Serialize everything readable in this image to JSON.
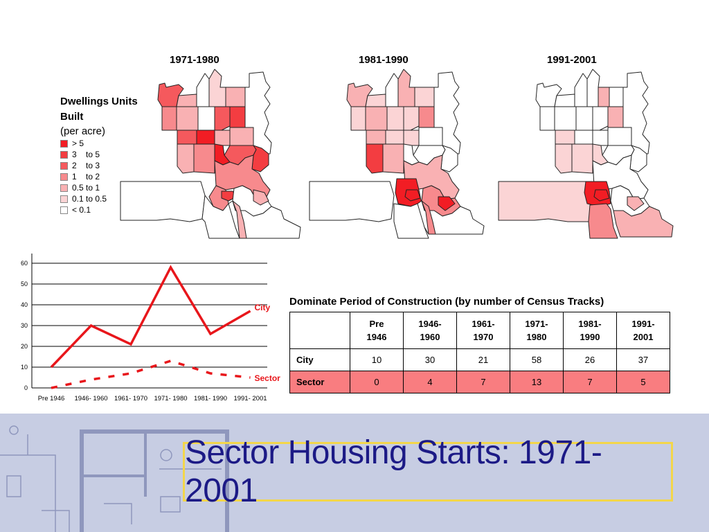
{
  "legend": {
    "title": "Dwellings Units Built",
    "subtitle": "(per acre)",
    "items": [
      {
        "label": "> 5",
        "color": "#f21d24"
      },
      {
        "label": "3    to 5",
        "color": "#f33d41"
      },
      {
        "label": "2    to 3",
        "color": "#f5595d"
      },
      {
        "label": "1    to 2",
        "color": "#f78a8d"
      },
      {
        "label": "0.5 to 1",
        "color": "#f9b1b3"
      },
      {
        "label": "0.1 to 0.5",
        "color": "#fbd4d5"
      },
      {
        "label": "< 0.1",
        "color": "#ffffff"
      }
    ]
  },
  "maps": [
    {
      "title": "1971-1980"
    },
    {
      "title": "1981-1990"
    },
    {
      "title": "1991-2001"
    }
  ],
  "chart_data": {
    "type": "line",
    "categories": [
      "Pre 1946",
      "1946- 1960",
      "1961- 1970",
      "1971- 1980",
      "1981- 1990",
      "1991- 2001"
    ],
    "series": [
      {
        "name": "City",
        "values": [
          10,
          30,
          21,
          58,
          26,
          37
        ],
        "color": "#e8161b",
        "dash": false
      },
      {
        "name": "Sector",
        "values": [
          0,
          4,
          7,
          13,
          7,
          5
        ],
        "color": "#e8161b",
        "dash": true
      }
    ],
    "yticks": [
      0,
      10,
      20,
      30,
      40,
      50,
      60
    ],
    "ylim": [
      0,
      62
    ],
    "grid": true,
    "title": "",
    "xlabel": "",
    "ylabel": ""
  },
  "table": {
    "title": "Dominate Period of Construction (by number of Census Tracks)",
    "headers": [
      "",
      "Pre\n1946",
      "1946-\n1960",
      "1961-\n1970",
      "1971-\n1980",
      "1981-\n1990",
      "1991-\n2001"
    ],
    "rows": [
      {
        "label": "City",
        "values": [
          "10",
          "30",
          "21",
          "58",
          "26",
          "37"
        ]
      },
      {
        "label": "Sector",
        "values": [
          "0",
          "4",
          "7",
          "13",
          "7",
          "5"
        ]
      }
    ]
  },
  "slide_title": "Sector Housing Starts: 1971-2001"
}
